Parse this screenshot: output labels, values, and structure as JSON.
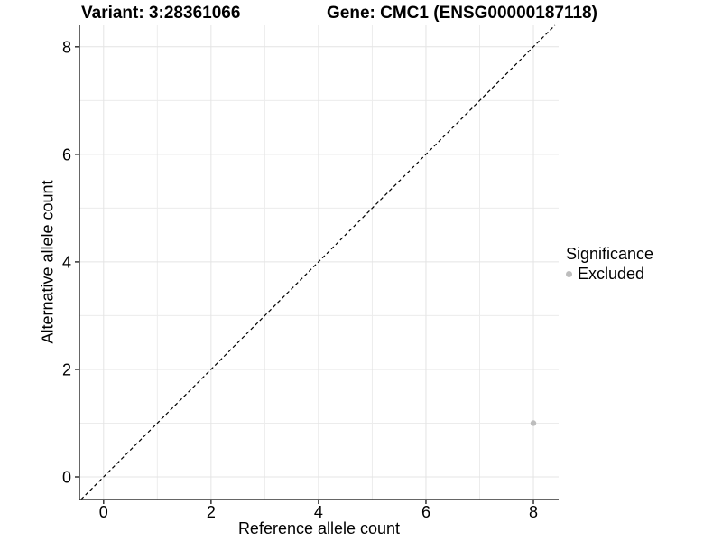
{
  "titles": {
    "variant": "Variant: 3:28361066",
    "gene": "Gene: CMC1 (ENSG00000187118)"
  },
  "chart_data": {
    "type": "scatter",
    "xlabel": "Reference allele count",
    "ylabel": "Alternative allele count",
    "xlim": [
      -0.45,
      8.47
    ],
    "ylim": [
      -0.42,
      8.4
    ],
    "x_major_ticks": [
      0,
      2,
      4,
      6,
      8
    ],
    "y_major_ticks": [
      0,
      2,
      4,
      6,
      8
    ],
    "x_minor_gridlines": [
      1,
      3,
      5,
      7
    ],
    "y_minor_gridlines": [
      1,
      3,
      5,
      7
    ],
    "grid": "on",
    "points": [
      {
        "x": 8,
        "y": 1,
        "significance": "Excluded"
      }
    ],
    "identity_line": {
      "equation": "y = x",
      "style": "dashed"
    },
    "legend": {
      "title": "Significance",
      "position": "right",
      "entries": [
        {
          "label": "Excluded",
          "color": "#bdbdbd"
        }
      ]
    },
    "colors": {
      "point": "#bdbdbd",
      "grid_major": "#e4e4e4",
      "grid_minor": "#ececec",
      "axis": "#333333",
      "reference_line": "#000000",
      "text": "#000000"
    }
  }
}
